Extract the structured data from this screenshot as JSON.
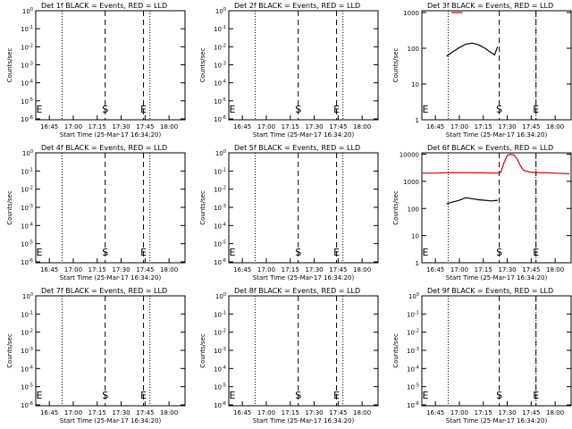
{
  "xaxis_label": "Start Time (25-Mar-17 16:34:20)",
  "ylabel": "Counts/sec",
  "marker_s": "S",
  "marker_e": "E",
  "chart_data": [
    {
      "type": "line",
      "title": "Det 1f BLACK = Events, RED = LLD",
      "xlabel": "Start Time (25-Mar-17 16:34:20)",
      "ylabel": "Counts/sec",
      "yscale": "log",
      "xtick_labels": [
        "16:45",
        "17:00",
        "17:15",
        "17:30",
        "17:45",
        "18:00"
      ],
      "ytick_labels": [
        "10^0",
        "10^-1",
        "10^-2",
        "10^-3",
        "10^-4",
        "10^-5",
        "10^-6"
      ],
      "ylim_exp": [
        -6.05,
        0
      ],
      "dotted_lines": [
        "16:53",
        "17:48"
      ],
      "dashed_lines": [
        "17:20",
        "17:44"
      ],
      "s_time": "17:20",
      "e_time": "17:44",
      "series": []
    },
    {
      "type": "line",
      "title": "Det 2f BLACK = Events, RED = LLD",
      "xlabel": "Start Time (25-Mar-17 16:34:20)",
      "ylabel": "Counts/sec",
      "yscale": "log",
      "xtick_labels": [
        "16:45",
        "17:00",
        "17:15",
        "17:30",
        "17:45",
        "18:00"
      ],
      "ytick_labels": [
        "10^0",
        "10^-1",
        "10^-2",
        "10^-3",
        "10^-4",
        "10^-5",
        "10^-6"
      ],
      "ylim_exp": [
        -6.05,
        0
      ],
      "dotted_lines": [
        "16:53",
        "17:48"
      ],
      "dashed_lines": [
        "17:20",
        "17:44"
      ],
      "s_time": "17:20",
      "e_time": "17:44",
      "series": []
    },
    {
      "type": "line",
      "title": "Det 3f BLACK = Events, RED = LLD",
      "xlabel": "Start Time (25-Mar-17 16:34:20)",
      "ylabel": "Counts/sec",
      "yscale": "log",
      "xtick_labels": [
        "16:45",
        "17:00",
        "17:15",
        "17:30",
        "17:45",
        "18:00"
      ],
      "ytick_labels": [
        "1",
        "10",
        "100",
        "1000"
      ],
      "ylim_exp": [
        0,
        3.05
      ],
      "dotted_lines": [
        "16:53",
        "17:48"
      ],
      "dashed_lines": [
        "17:25",
        "17:48"
      ],
      "s_time": "17:25",
      "e_time": "17:48",
      "series": [
        {
          "color": "#000000",
          "x": [
            "16:52",
            "16:56",
            "17:00",
            "17:04",
            "17:08",
            "17:12",
            "17:16",
            "17:20",
            "17:22",
            "17:24"
          ],
          "y": [
            60,
            80,
            105,
            130,
            140,
            125,
            100,
            75,
            65,
            110
          ]
        },
        {
          "color": "#dd0000",
          "x": [
            "16:55",
            "16:58",
            "17:00",
            "17:02"
          ],
          "y": [
            1000,
            1000,
            1000,
            1000
          ]
        }
      ]
    },
    {
      "type": "line",
      "title": "Det 4f BLACK = Events, RED = LLD",
      "xlabel": "Start Time (25-Mar-17 16:34:20)",
      "ylabel": "Counts/sec",
      "yscale": "log",
      "xtick_labels": [
        "16:45",
        "17:00",
        "17:15",
        "17:30",
        "17:45",
        "18:00"
      ],
      "ytick_labels": [
        "10^0",
        "10^-1",
        "10^-2",
        "10^-3",
        "10^-4",
        "10^-5",
        "10^-6"
      ],
      "ylim_exp": [
        -6.05,
        0
      ],
      "dotted_lines": [
        "16:53",
        "17:48"
      ],
      "dashed_lines": [
        "17:20",
        "17:44"
      ],
      "s_time": "17:20",
      "e_time": "17:44",
      "series": []
    },
    {
      "type": "line",
      "title": "Det 5f BLACK = Events, RED = LLD",
      "xlabel": "Start Time (25-Mar-17 16:34:20)",
      "ylabel": "Counts/sec",
      "yscale": "log",
      "xtick_labels": [
        "16:45",
        "17:00",
        "17:15",
        "17:30",
        "17:45",
        "18:00"
      ],
      "ytick_labels": [
        "10^0",
        "10^-1",
        "10^-2",
        "10^-3",
        "10^-4",
        "10^-5",
        "10^-6"
      ],
      "ylim_exp": [
        -6.05,
        0
      ],
      "dotted_lines": [
        "16:53",
        "17:48"
      ],
      "dashed_lines": [
        "17:20",
        "17:44"
      ],
      "s_time": "17:20",
      "e_time": "17:44",
      "series": []
    },
    {
      "type": "line",
      "title": "Det 6f BLACK = Events, RED = LLD",
      "xlabel": "Start Time (25-Mar-17 16:34:20)",
      "ylabel": "Counts/sec",
      "yscale": "log",
      "xtick_labels": [
        "16:45",
        "17:00",
        "17:15",
        "17:30",
        "17:45",
        "18:00"
      ],
      "ytick_labels": [
        "1",
        "10",
        "100",
        "1000",
        "10000"
      ],
      "ylim_exp": [
        0,
        4.05
      ],
      "dotted_lines": [
        "16:53",
        "17:48"
      ],
      "dashed_lines": [
        "17:25",
        "17:48"
      ],
      "s_time": "17:25",
      "e_time": "17:48",
      "series": [
        {
          "color": "#000000",
          "x": [
            "16:52",
            "16:56",
            "17:00",
            "17:04",
            "17:08",
            "17:12",
            "17:16",
            "17:20",
            "17:24"
          ],
          "y": [
            150,
            175,
            200,
            250,
            230,
            210,
            200,
            190,
            200
          ]
        },
        {
          "color": "#dd0000",
          "x": [
            "16:37",
            "16:45",
            "16:55",
            "17:05",
            "17:15",
            "17:24",
            "17:26",
            "17:28",
            "17:30",
            "17:32",
            "17:34",
            "17:36",
            "17:38",
            "17:40",
            "17:44",
            "17:50",
            "18:00",
            "18:09"
          ],
          "y": [
            2000,
            2000,
            2100,
            2100,
            2050,
            2000,
            2200,
            5000,
            9000,
            10000,
            9500,
            7000,
            4000,
            2600,
            2200,
            2100,
            2000,
            1900
          ]
        }
      ]
    },
    {
      "type": "line",
      "title": "Det 7f BLACK = Events, RED = LLD",
      "xlabel": "Start Time (25-Mar-17 16:34:20)",
      "ylabel": "Counts/sec",
      "yscale": "log",
      "xtick_labels": [
        "16:45",
        "17:00",
        "17:15",
        "17:30",
        "17:45",
        "18:00"
      ],
      "ytick_labels": [
        "10^0",
        "10^-1",
        "10^-2",
        "10^-3",
        "10^-4",
        "10^-5",
        "10^-6"
      ],
      "ylim_exp": [
        -6.05,
        0
      ],
      "dotted_lines": [
        "16:53",
        "17:48"
      ],
      "dashed_lines": [
        "17:20",
        "17:44"
      ],
      "s_time": "17:20",
      "e_time": "17:44",
      "series": []
    },
    {
      "type": "line",
      "title": "Det 8f BLACK = Events, RED = LLD",
      "xlabel": "Start Time (25-Mar-17 16:34:20)",
      "ylabel": "Counts/sec",
      "yscale": "log",
      "xtick_labels": [
        "16:45",
        "17:00",
        "17:15",
        "17:30",
        "17:45",
        "18:00"
      ],
      "ytick_labels": [
        "10^0",
        "10^-1",
        "10^-2",
        "10^-3",
        "10^-4",
        "10^-5",
        "10^-6"
      ],
      "ylim_exp": [
        -6.05,
        0
      ],
      "dotted_lines": [
        "16:53",
        "17:48"
      ],
      "dashed_lines": [
        "17:20",
        "17:44"
      ],
      "s_time": "17:20",
      "e_time": "17:44",
      "series": []
    },
    {
      "type": "line",
      "title": "Det 9f BLACK = Events, RED = LLD",
      "xlabel": "Start Time (25-Mar-17 16:34:20)",
      "ylabel": "Counts/sec",
      "yscale": "log",
      "xtick_labels": [
        "16:45",
        "17:00",
        "17:15",
        "17:30",
        "17:45",
        "18:00"
      ],
      "ytick_labels": [
        "10^0",
        "10^-1",
        "10^-2",
        "10^-3",
        "10^-4",
        "10^-5",
        "10^-6"
      ],
      "ylim_exp": [
        -6.05,
        0
      ],
      "dotted_lines": [
        "16:53",
        "17:48"
      ],
      "dashed_lines": [
        "17:25",
        "17:48"
      ],
      "s_time": "17:25",
      "e_time": "17:48",
      "series": []
    }
  ]
}
